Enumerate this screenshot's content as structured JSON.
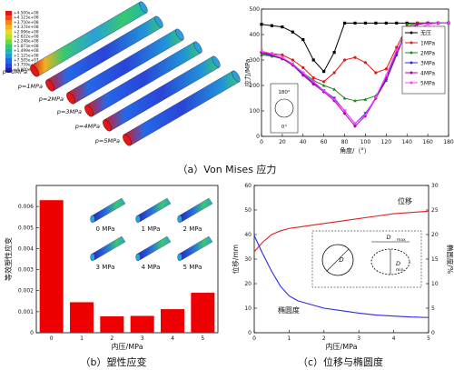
{
  "captions": {
    "a": "（a）Von Mises 应力",
    "b": "（b）塑性应变",
    "c": "（c）位移与椭圆度"
  },
  "panel_a_left": {
    "legend_values": [
      "+4.500e+08",
      "+4.123e+08",
      "+3.750e+08",
      "+3.374e+08",
      "+2.996e+08",
      "+2.622e+08",
      "+2.248e+08",
      "+1.873e+08",
      "+1.499e+08",
      "+1.125e+08",
      "+7.505e+07",
      "+3.759e+07",
      "+0.000e+00"
    ],
    "legend_colors": [
      "#e0141a",
      "#f04a10",
      "#f8841a",
      "#f7b221",
      "#e8d926",
      "#b8e030",
      "#70d845",
      "#38c870",
      "#20b8a6",
      "#2094d8",
      "#2468e8",
      "#2a44d8",
      "#2020b8"
    ],
    "pipe_labels": [
      "p=0MPa",
      "p=1MPa",
      "p=2MPa",
      "p=3MPa",
      "p=4MPa",
      "p=5MPa"
    ]
  },
  "chart_data": [
    {
      "type": "line",
      "title": "",
      "xlabel": "角度/（°）",
      "ylabel": "应力/MPa",
      "xlim": [
        0,
        180
      ],
      "ylim": [
        0,
        500
      ],
      "xticks": [
        "0",
        "20",
        "40",
        "60",
        "80",
        "100",
        "120",
        "140",
        "160",
        "180"
      ],
      "yticks": [
        "0",
        "100",
        "200",
        "300",
        "400",
        "500"
      ],
      "legend_position": "right",
      "inset_labels": [
        "180°",
        "0°"
      ],
      "series": [
        {
          "name": "无压",
          "color": "#000000",
          "marker": "square",
          "x": [
            0,
            10,
            20,
            30,
            40,
            50,
            60,
            70,
            80,
            90,
            100,
            110,
            120,
            130,
            140,
            150,
            160,
            170,
            180
          ],
          "y": [
            440,
            435,
            430,
            410,
            380,
            300,
            255,
            330,
            445,
            445,
            445,
            445,
            445,
            445,
            445,
            445,
            445,
            445,
            445
          ]
        },
        {
          "name": "1MPa",
          "color": "#e01818",
          "marker": "circle",
          "x": [
            0,
            10,
            20,
            30,
            40,
            50,
            60,
            70,
            80,
            90,
            100,
            110,
            120,
            130,
            140,
            150,
            160,
            170,
            180
          ],
          "y": [
            330,
            325,
            320,
            300,
            270,
            230,
            215,
            250,
            300,
            310,
            290,
            250,
            265,
            350,
            430,
            445,
            445,
            445,
            445
          ]
        },
        {
          "name": "2MPa",
          "color": "#1a8a1a",
          "marker": "triangle",
          "x": [
            0,
            10,
            20,
            30,
            40,
            50,
            60,
            70,
            80,
            90,
            100,
            110,
            120,
            130,
            140,
            150,
            160,
            170,
            180
          ],
          "y": [
            320,
            315,
            305,
            285,
            250,
            220,
            200,
            185,
            150,
            140,
            145,
            160,
            220,
            320,
            440,
            445,
            445,
            445,
            445
          ]
        },
        {
          "name": "3MPa",
          "color": "#2a2ae0",
          "marker": "triangle-down",
          "x": [
            0,
            10,
            20,
            30,
            40,
            50,
            60,
            70,
            80,
            90,
            100,
            110,
            120,
            130,
            140,
            150,
            160,
            170,
            180
          ],
          "y": [
            325,
            318,
            305,
            280,
            245,
            210,
            180,
            150,
            100,
            50,
            90,
            150,
            220,
            320,
            420,
            440,
            445,
            445,
            445
          ]
        },
        {
          "name": "4MPa",
          "color": "#b000b0",
          "marker": "diamond",
          "x": [
            0,
            10,
            20,
            30,
            40,
            50,
            60,
            70,
            80,
            90,
            100,
            110,
            120,
            130,
            140,
            150,
            160,
            170,
            180
          ],
          "y": [
            330,
            320,
            305,
            280,
            240,
            205,
            175,
            140,
            90,
            40,
            80,
            150,
            230,
            330,
            410,
            440,
            445,
            445,
            445
          ]
        },
        {
          "name": "5MPa",
          "color": "#ff40ff",
          "marker": "triangle-left",
          "x": [
            0,
            10,
            20,
            30,
            40,
            50,
            60,
            70,
            80,
            90,
            100,
            110,
            120,
            130,
            140,
            150,
            160,
            170,
            180
          ],
          "y": [
            335,
            325,
            310,
            285,
            250,
            215,
            180,
            145,
            100,
            50,
            85,
            155,
            240,
            340,
            400,
            420,
            440,
            445,
            445
          ]
        }
      ]
    },
    {
      "type": "bar",
      "title": "",
      "xlabel": "内压/MPa",
      "ylabel": "等效塑性应变",
      "categories": [
        "0",
        "1",
        "2",
        "3",
        "4",
        "5"
      ],
      "values": [
        0.0063,
        0.00145,
        0.00078,
        0.0008,
        0.00112,
        0.0019
      ],
      "ylim": [
        0,
        0.007
      ],
      "yticks": [
        "0",
        "0.001",
        "0.002",
        "0.003",
        "0.004",
        "0.005",
        "0.006"
      ],
      "color": "#ee0000",
      "inset_labels": [
        "0 MPa",
        "1 MPa",
        "2 MPa",
        "3 MPa",
        "4 MPa",
        "5 MPa"
      ]
    },
    {
      "type": "line",
      "title": "",
      "xlabel": "内压/MPa",
      "ylabel": "位移/mm",
      "y2label": "椭圆度/%",
      "xlim": [
        0,
        5
      ],
      "ylim": [
        0,
        60
      ],
      "y2lim": [
        0,
        30
      ],
      "xticks": [
        "0",
        "1",
        "2",
        "3",
        "4",
        "5"
      ],
      "yticks": [
        "0",
        "10",
        "20",
        "30",
        "40",
        "50",
        "60"
      ],
      "y2ticks": [
        "0",
        "5",
        "10",
        "15",
        "20",
        "25",
        "30"
      ],
      "inset_labels": [
        "D",
        "D",
        "max",
        "D",
        "min"
      ],
      "series": [
        {
          "name": "位移",
          "axis": "left",
          "color": "#e02020",
          "x": [
            0,
            0.25,
            0.5,
            0.75,
            1,
            1.25,
            1.5,
            2,
            2.5,
            3,
            3.5,
            4,
            4.5,
            5
          ],
          "y": [
            33,
            37,
            40,
            41.5,
            42.5,
            43,
            43.5,
            44.5,
            45.5,
            46.5,
            47.5,
            48.5,
            49,
            49.5
          ]
        },
        {
          "name": "椭圆度",
          "axis": "right",
          "color": "#2a2ae8",
          "x": [
            0,
            0.25,
            0.5,
            0.75,
            1,
            1.25,
            1.5,
            2,
            2.5,
            3,
            3.5,
            4,
            4.5,
            5
          ],
          "y": [
            19.8,
            16,
            12.5,
            9.5,
            7.5,
            6.5,
            6,
            5,
            4.5,
            4,
            3.6,
            3.4,
            3.2,
            3.1
          ]
        }
      ]
    }
  ]
}
